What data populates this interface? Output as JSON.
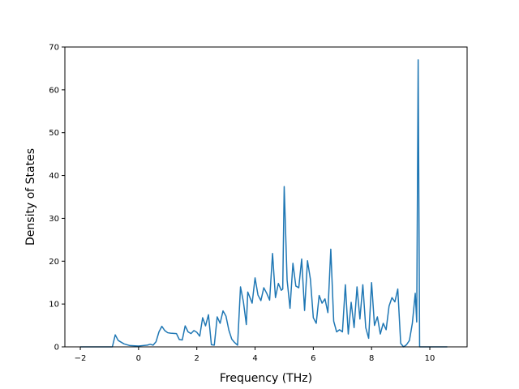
{
  "chart_data": {
    "type": "line",
    "title": "",
    "xlabel": "Frequency (THz)",
    "ylabel": "Density of States",
    "xlim": [
      -2.53,
      11.28
    ],
    "ylim": [
      0,
      70
    ],
    "xticks": [
      -2,
      0,
      2,
      4,
      6,
      8,
      10
    ],
    "yticks": [
      0,
      10,
      20,
      30,
      40,
      50,
      60,
      70
    ],
    "grid": false,
    "legend": "none",
    "series": [
      {
        "color": "#1f77b4",
        "x": [
          -2.0,
          -0.9,
          -0.8,
          -0.7,
          -0.5,
          -0.3,
          0.0,
          0.3,
          0.4,
          0.5,
          0.6,
          0.7,
          0.8,
          0.9,
          1.0,
          1.1,
          1.3,
          1.4,
          1.5,
          1.6,
          1.7,
          1.8,
          1.9,
          2.0,
          2.1,
          2.2,
          2.3,
          2.4,
          2.5,
          2.6,
          2.7,
          2.8,
          2.9,
          3.0,
          3.1,
          3.2,
          3.3,
          3.4,
          3.5,
          3.6,
          3.7,
          3.75,
          3.9,
          4.0,
          4.1,
          4.2,
          4.3,
          4.4,
          4.5,
          4.6,
          4.7,
          4.8,
          4.9,
          4.95,
          5.0,
          5.1,
          5.2,
          5.3,
          5.4,
          5.5,
          5.6,
          5.7,
          5.8,
          5.9,
          6.0,
          6.1,
          6.2,
          6.3,
          6.4,
          6.5,
          6.6,
          6.7,
          6.8,
          6.9,
          7.0,
          7.1,
          7.2,
          7.3,
          7.4,
          7.5,
          7.6,
          7.7,
          7.8,
          7.9,
          8.0,
          8.1,
          8.2,
          8.3,
          8.4,
          8.5,
          8.6,
          8.7,
          8.8,
          8.9,
          9.0,
          9.1,
          9.2,
          9.3,
          9.4,
          9.5,
          9.55,
          9.6,
          9.65,
          9.7,
          10.6
        ],
        "values": [
          0,
          0,
          2.8,
          1.5,
          0.7,
          0.3,
          0.2,
          0.4,
          0.6,
          0.4,
          1.2,
          3.5,
          4.8,
          3.8,
          3.3,
          3.2,
          3.1,
          1.7,
          1.6,
          4.9,
          3.5,
          3.1,
          3.8,
          3.4,
          2.5,
          6.8,
          4.9,
          7.5,
          0.5,
          0.4,
          7.0,
          5.5,
          8.4,
          7.2,
          3.9,
          1.8,
          1.0,
          0.4,
          14.0,
          10.5,
          5.2,
          12.8,
          10.2,
          16.1,
          12.1,
          10.8,
          13.8,
          12.5,
          10.9,
          21.8,
          11.5,
          14.8,
          13.2,
          13.5,
          37.4,
          15.6,
          9.0,
          19.5,
          14.2,
          13.8,
          20.5,
          8.5,
          20.1,
          15.8,
          6.8,
          5.5,
          12.0,
          10.2,
          11.2,
          8.0,
          22.8,
          6.0,
          3.5,
          4.0,
          3.5,
          14.5,
          3.0,
          10.4,
          4.5,
          14.0,
          6.5,
          14.5,
          4.5,
          2.0,
          15.0,
          5.0,
          7.0,
          3.0,
          5.5,
          4.0,
          9.5,
          11.5,
          10.5,
          13.5,
          0.8,
          0,
          0.5,
          1.5,
          5.5,
          12.5,
          5.8,
          67.0,
          0,
          0,
          0
        ]
      }
    ]
  }
}
